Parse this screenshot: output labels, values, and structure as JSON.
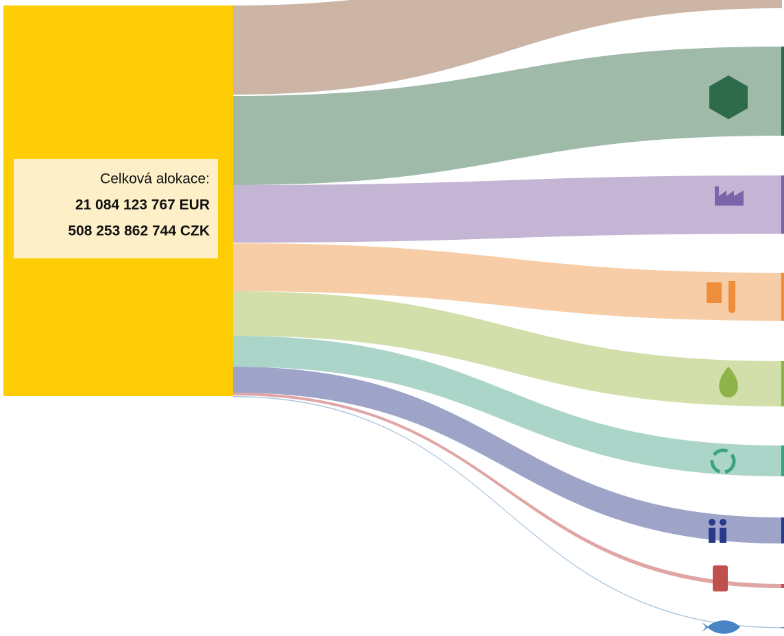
{
  "summary": {
    "label": "Celková alokace:",
    "eur": "21 084 123 767 EUR",
    "czk": "508 253 862 744 CZK"
  }
}
